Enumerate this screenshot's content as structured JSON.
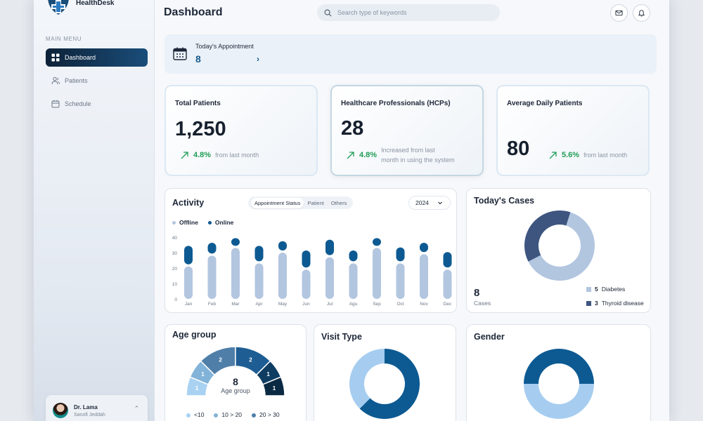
{
  "app": {
    "name": "HealthDesk"
  },
  "sidebar": {
    "menu_title": "MAIN MENU",
    "items": [
      {
        "label": "Dashboard",
        "icon": "grid-icon",
        "active": true
      },
      {
        "label": "Patients",
        "icon": "users-icon",
        "active": false
      },
      {
        "label": "Schedule",
        "icon": "calendar-icon",
        "active": false
      }
    ],
    "user": {
      "name": "Dr. Lama",
      "location": "Sanofi Jeddah"
    }
  },
  "header": {
    "title": "Dashboard",
    "search_placeholder": "Search type of keywords"
  },
  "appointment": {
    "label": "Today's Appointment",
    "value": "8"
  },
  "stats": [
    {
      "title": "Total Patients",
      "value": "1,250",
      "pct": "4.8%",
      "note": "from last month"
    },
    {
      "title": "Healthcare Professionals (HCPs)",
      "value": "28",
      "pct": "4.8%",
      "note_line1": "Increased from last",
      "note_line2": "month in using the system"
    },
    {
      "title": "Average Daily Patients",
      "value": "80",
      "pct": "5.6%",
      "note": "from last month"
    }
  ],
  "activity": {
    "title": "Activity",
    "tabs": [
      "Appointment Status",
      "Patient",
      "Others"
    ],
    "active_tab": "Appointment Status",
    "year": "2024",
    "colors": {
      "offline": "#b3c6e0",
      "online": "#0d5a92"
    },
    "chart_data": {
      "type": "bar",
      "categories": [
        "Jan",
        "Feb",
        "Mar",
        "Apr",
        "May",
        "Jun",
        "Jul",
        "Agu",
        "Sep",
        "Oct",
        "Nov",
        "Dec"
      ],
      "series": [
        {
          "name": "Offline",
          "values": [
            21,
            28,
            33,
            23,
            30,
            19,
            27,
            23,
            33,
            23,
            29,
            19
          ]
        },
        {
          "name": "Online",
          "values": [
            12,
            7,
            5,
            10,
            6,
            11,
            10,
            7,
            5,
            9,
            6,
            10
          ]
        }
      ],
      "ylim": [
        0,
        40
      ],
      "yticks": [
        0,
        10,
        20,
        30,
        40
      ],
      "legend": "top-left"
    }
  },
  "cases": {
    "title": "Today's Cases",
    "total": "8",
    "unit": "Cases",
    "legend": [
      {
        "count": "5",
        "label": "Diabetes",
        "color": "#b3c6e0"
      },
      {
        "count": "3",
        "label": "Thyroid disease",
        "color": "#3e5580"
      }
    ],
    "chart_data": {
      "type": "pie",
      "labels": [
        "Diabetes",
        "Thyroid disease"
      ],
      "values": [
        5,
        3
      ]
    }
  },
  "age_group": {
    "title": "Age group",
    "center_value": "8",
    "center_label": "Age group",
    "segments": [
      {
        "value": "1",
        "color": "#a9d2f2"
      },
      {
        "value": "1",
        "color": "#82b3d8"
      },
      {
        "value": "2",
        "color": "#4f7fa8"
      },
      {
        "value": "2",
        "color": "#1d5d93"
      },
      {
        "value": "1",
        "color": "#0f3d62"
      },
      {
        "value": "1",
        "color": "#0a2a44"
      }
    ],
    "legend": [
      {
        "label": "<10",
        "color": "#a9d2f2"
      },
      {
        "label": "10 > 20",
        "color": "#82b3d8"
      },
      {
        "label": "20 > 30",
        "color": "#4f7fa8"
      }
    ],
    "chart_data": {
      "type": "pie",
      "values": [
        1,
        1,
        2,
        2,
        1,
        1
      ]
    }
  },
  "visit_type": {
    "title": "Visit Type",
    "colors": [
      "#0d5a92",
      "#a6cdf0"
    ],
    "chart_data": {
      "type": "pie",
      "values": [
        5,
        3
      ]
    }
  },
  "gender": {
    "title": "Gender",
    "colors": [
      "#0d5a92",
      "#a6cdf0"
    ],
    "chart_data": {
      "type": "pie",
      "values": [
        4,
        4
      ]
    }
  }
}
